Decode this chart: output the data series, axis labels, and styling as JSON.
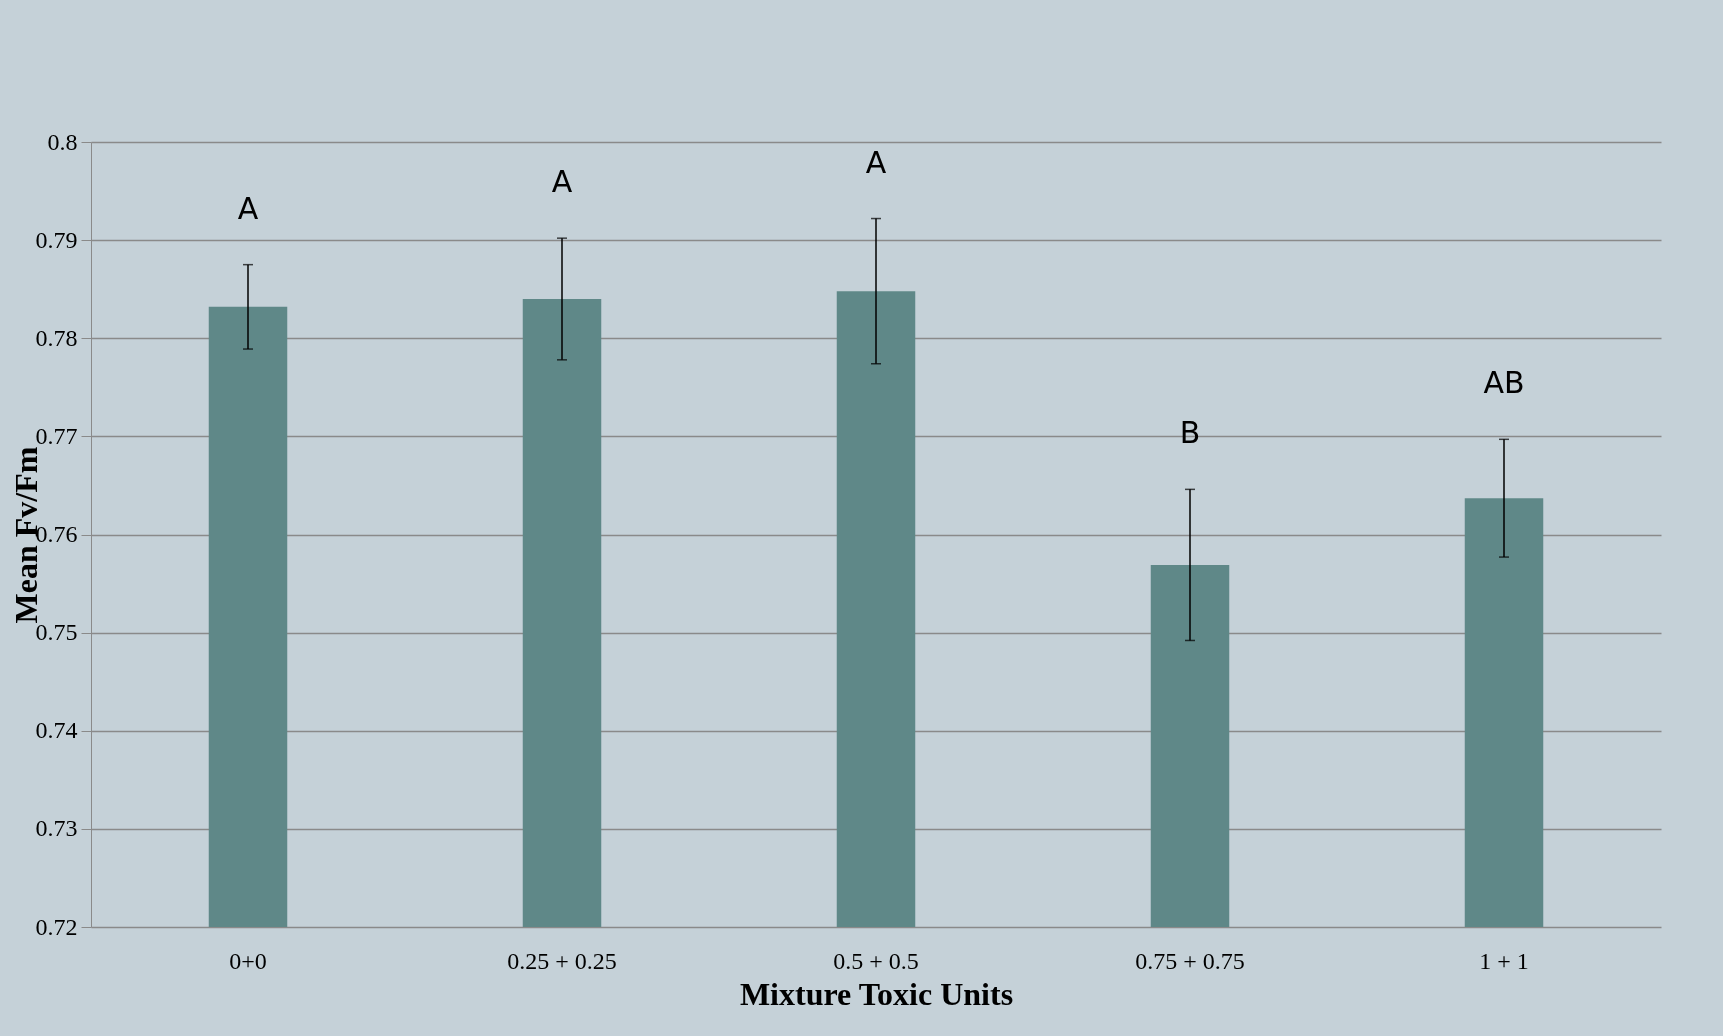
{
  "chart_data": {
    "type": "bar",
    "xlabel": "Mixture Toxic Units",
    "ylabel": "Mean Fv/Fm",
    "categories": [
      "0+0",
      "0.25 + 0.25",
      "0.5 + 0.5",
      "0.75 + 0.75",
      "1 + 1"
    ],
    "values": [
      0.7832,
      0.784,
      0.7848,
      0.7569,
      0.7637
    ],
    "errors": [
      0.0043,
      0.0062,
      0.0074,
      0.0077,
      0.006
    ],
    "color": "#5f8888",
    "ylim": [
      0.72,
      0.8
    ],
    "yticks": [
      0.72,
      0.73,
      0.74,
      0.75,
      0.76,
      0.77,
      0.78,
      0.79,
      0.8
    ],
    "grid": "y",
    "annotations": [
      "A",
      "A",
      "A",
      "B",
      "AB"
    ]
  }
}
